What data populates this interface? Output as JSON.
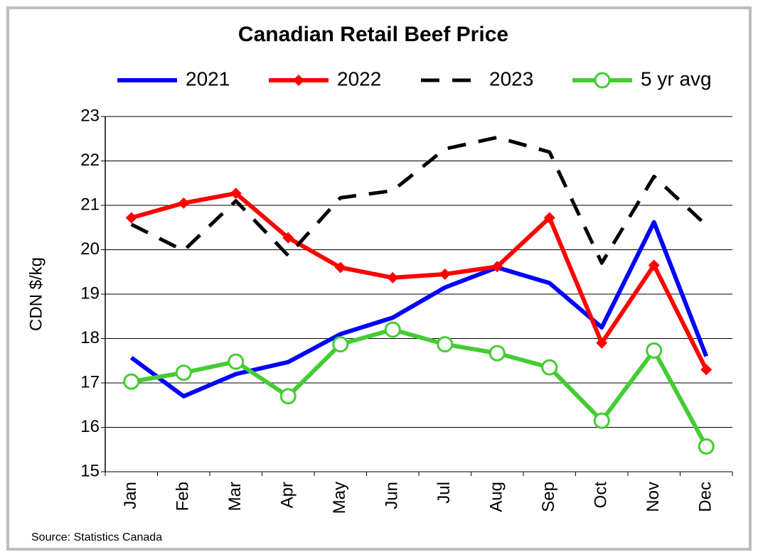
{
  "chart_data": {
    "type": "line",
    "title": "Canadian Retail Beef Price",
    "y_label": "CDN $/kg",
    "source": "Source: Statistics Canada",
    "categories": [
      "Jan",
      "Feb",
      "Mar",
      "Apr",
      "May",
      "Jun",
      "Jul",
      "Aug",
      "Sep",
      "Oct",
      "Nov",
      "Dec"
    ],
    "series": [
      {
        "name": "2021",
        "color": "#0000ff",
        "marker": "none",
        "dashed": false,
        "values": [
          17.57,
          16.7,
          17.2,
          17.47,
          18.1,
          18.47,
          19.15,
          19.6,
          19.25,
          18.25,
          20.62,
          17.6
        ]
      },
      {
        "name": "2022",
        "color": "#ff0000",
        "marker": "diamond",
        "dashed": false,
        "values": [
          20.72,
          21.05,
          21.27,
          20.27,
          19.6,
          19.37,
          19.45,
          19.62,
          20.72,
          17.9,
          19.65,
          17.3
        ]
      },
      {
        "name": "2023",
        "color": "#000000",
        "marker": "none",
        "dashed": true,
        "values": [
          20.57,
          19.98,
          21.1,
          19.87,
          21.17,
          21.33,
          22.27,
          22.53,
          22.2,
          19.7,
          21.65,
          20.55
        ]
      },
      {
        "name": "5 yr avg",
        "color": "#44cc33",
        "marker": "circle",
        "dashed": false,
        "values": [
          17.03,
          17.23,
          17.48,
          16.7,
          17.87,
          18.2,
          17.87,
          17.67,
          17.35,
          16.15,
          17.73,
          15.57
        ]
      }
    ],
    "ylim": [
      15,
      23
    ],
    "yticks": [
      15,
      16,
      17,
      18,
      19,
      20,
      21,
      22,
      23
    ],
    "grid": true
  }
}
